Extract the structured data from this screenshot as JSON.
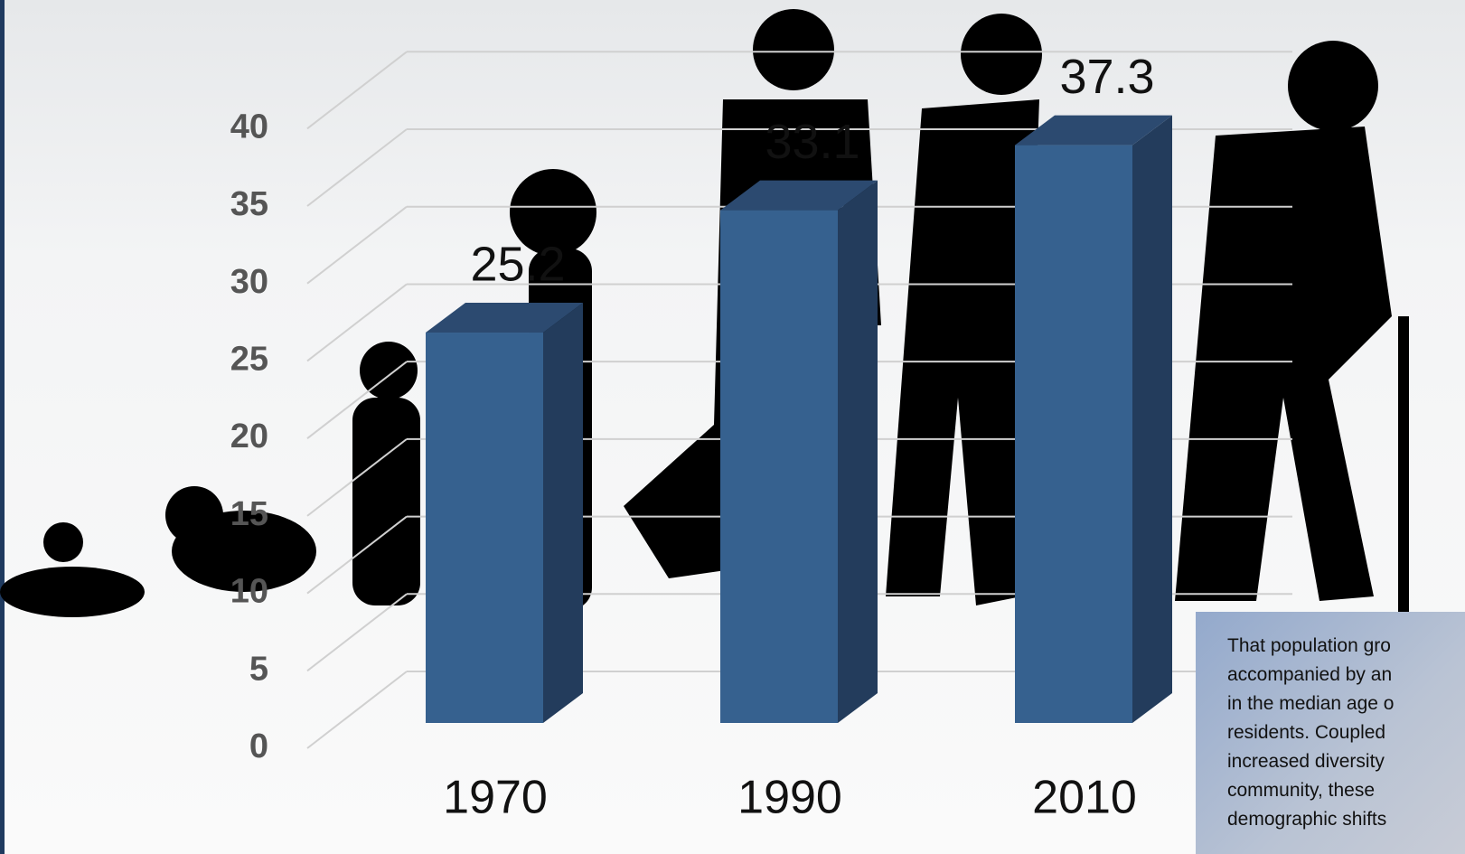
{
  "chart_data": {
    "type": "bar",
    "categories": [
      "1970",
      "1990",
      "2010"
    ],
    "values": [
      25.2,
      33.1,
      37.3
    ],
    "color": "#36618f",
    "ylim": [
      0,
      40
    ],
    "yticks": [
      0,
      5,
      10,
      15,
      20,
      25,
      30,
      35,
      40
    ],
    "grid": true,
    "annotation": [
      "That population gro",
      "accompanied by an",
      "in the median age o",
      "residents.  Coupled",
      "increased diversity",
      "community, these",
      "demographic shifts"
    ]
  }
}
